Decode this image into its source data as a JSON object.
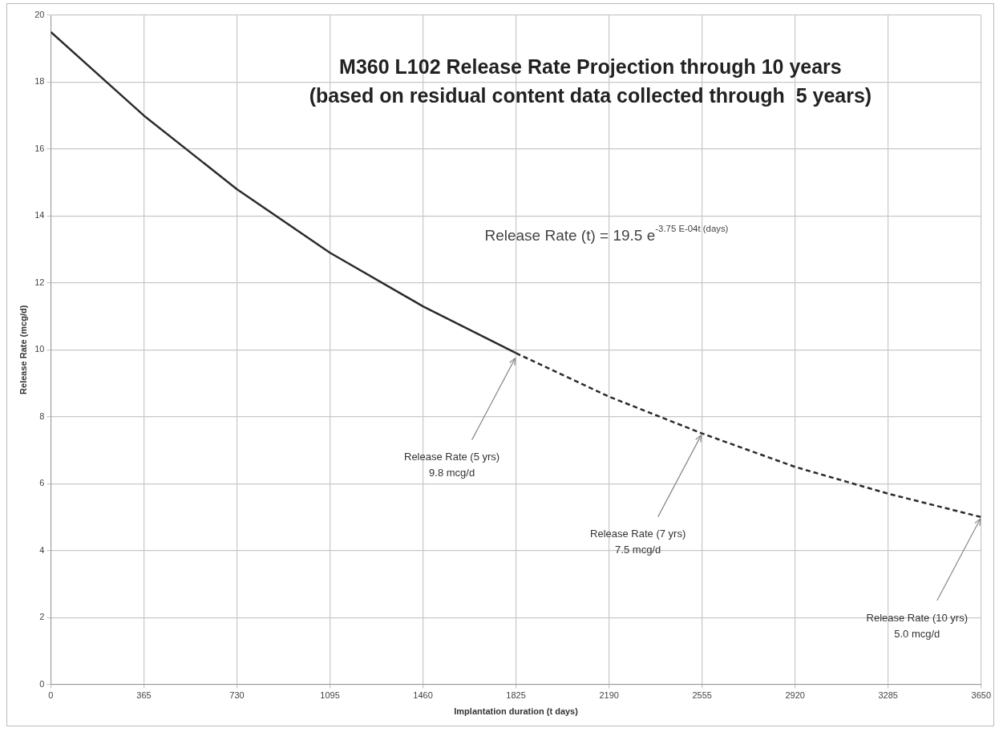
{
  "chart_data": {
    "type": "line",
    "title": "M360 L102 Release Rate Projection through 10 years",
    "subtitle": "(based on residual content data collected through  5 years)",
    "xlabel": "Implantation duration (t days)",
    "ylabel": "Release Rate (mcg/d)",
    "series": [
      {
        "color": "#2b2b2b",
        "line_style": "solid",
        "x": [
          0,
          365,
          730,
          1095,
          1460,
          1825
        ],
        "values": [
          19.5,
          17.0,
          14.8,
          12.9,
          11.3,
          9.9
        ]
      },
      {
        "color": "#2b2b2b",
        "line_style": "dashed",
        "x": [
          1825,
          2190,
          2555,
          2920,
          3285,
          3650
        ],
        "values": [
          9.9,
          8.6,
          7.5,
          6.5,
          5.7,
          5.0
        ]
      }
    ],
    "xlim": [
      0,
      3650
    ],
    "xticks": [
      0,
      365,
      730,
      1095,
      1460,
      1825,
      2190,
      2555,
      2920,
      3285,
      3650
    ],
    "ylim": [
      0,
      20
    ],
    "yticks": [
      0,
      2,
      4,
      6,
      8,
      10,
      12,
      14,
      16,
      18,
      20
    ],
    "grid": true,
    "legend": false,
    "marker": "none",
    "annotations": [
      "Release Rate (t) = 19.5 e$^{-3.75 E-04t (days)}$",
      {
        "text": "Release Rate (5 yrs)\n9.8 mcg/d",
        "x": 1825,
        "y": 9.8
      },
      {
        "text": "Release Rate (7 yrs)\n7.5 mcg/d",
        "x": 2555,
        "y": 7.5
      },
      {
        "text": "Release Rate (10 yrs)\n5.0 mcg/d",
        "x": 3650,
        "y": 5.0
      }
    ]
  }
}
